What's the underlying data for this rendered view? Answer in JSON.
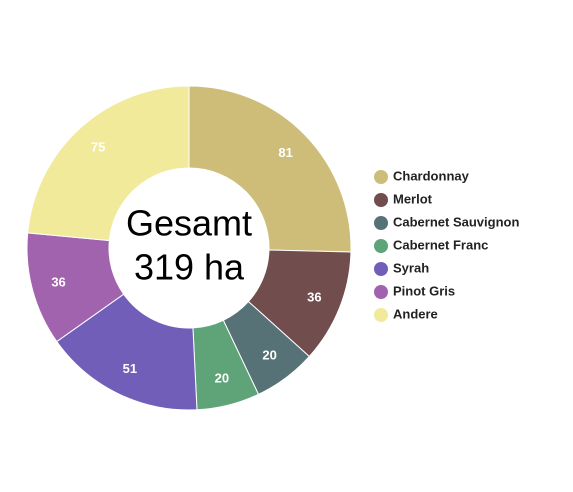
{
  "chart_data": {
    "type": "doughnut",
    "center_text": [
      "Gesamt",
      "319 ha"
    ],
    "categories": [
      "Chardonnay",
      "Merlot",
      "Cabernet Sauvignon",
      "Cabernet Franc",
      "Syrah",
      "Pinot Gris",
      "Andere"
    ],
    "values": [
      81,
      36,
      20,
      20,
      51,
      36,
      75
    ],
    "colors": [
      "#cdbd78",
      "#714d4e",
      "#577276",
      "#5fa478",
      "#705eb8",
      "#a263ae",
      "#f0ea9a"
    ],
    "legend": "right"
  }
}
